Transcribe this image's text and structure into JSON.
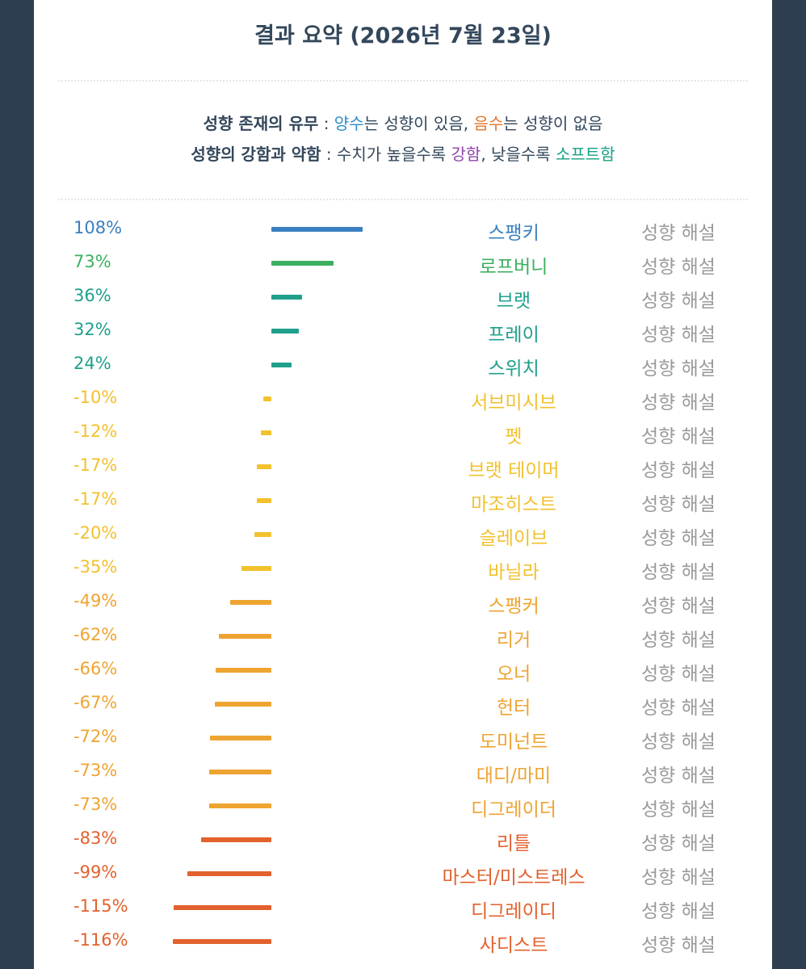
{
  "header": {
    "title": "결과 요약 (2026년 7월 23일)"
  },
  "legend": {
    "line1": {
      "label": "성향 존재의 유무",
      "sep": " : ",
      "positive": "양수",
      "text1": "는 성향이 있음, ",
      "negative": "음수",
      "text2": "는 성향이 없음"
    },
    "line2": {
      "label": "성향의 강함과 약함",
      "sep": " : ",
      "text1": "수치가 높을수록 ",
      "strong": "강함",
      "text2": ", 낮을수록 ",
      "soft": "소프트함"
    },
    "colors": {
      "positive": "#2b8ccb",
      "negative": "#e3752a",
      "strong": "#8e44ad",
      "soft": "#16a085"
    }
  },
  "explain_label": "성향 해설",
  "chart_data": {
    "type": "bar",
    "orientation": "horizontal",
    "categories": [
      "스팽키",
      "로프버니",
      "브랫",
      "프레이",
      "스위치",
      "서브미시브",
      "펫",
      "브랫 테이머",
      "마조히스트",
      "슬레이브",
      "바닐라",
      "스팽커",
      "리거",
      "오너",
      "헌터",
      "도미넌트",
      "대디/마미",
      "디그레이더",
      "리틀",
      "마스터/미스트레스",
      "디그레이디",
      "사디스트"
    ],
    "values": [
      108,
      73,
      36,
      32,
      24,
      -10,
      -12,
      -17,
      -17,
      -20,
      -35,
      -49,
      -62,
      -66,
      -67,
      -72,
      -73,
      -73,
      -83,
      -99,
      -115,
      -116
    ],
    "value_labels": [
      "108%",
      "73%",
      "36%",
      "32%",
      "24%",
      "-10%",
      "-12%",
      "-17%",
      "-17%",
      "-20%",
      "-35%",
      "-49%",
      "-62%",
      "-66%",
      "-67%",
      "-72%",
      "-73%",
      "-73%",
      "-83%",
      "-99%",
      "-115%",
      "-116%"
    ],
    "colors": [
      "#3a7fc1",
      "#3cb060",
      "#1fa08c",
      "#1fa08c",
      "#1fa08c",
      "#f2c12e",
      "#f2c12e",
      "#f2c12e",
      "#f2c12e",
      "#f2c12e",
      "#f2c12e",
      "#eea431",
      "#eea431",
      "#eea431",
      "#eea431",
      "#eea431",
      "#eea431",
      "#eea431",
      "#e2612d",
      "#e2612d",
      "#e2612d",
      "#e2612d"
    ],
    "unit": "%"
  }
}
